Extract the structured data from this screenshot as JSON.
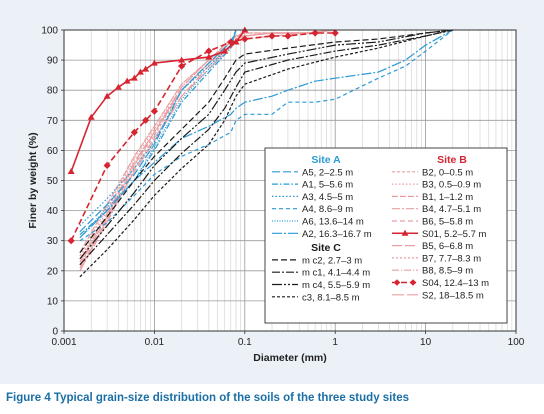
{
  "chart_data": {
    "type": "line",
    "xscale": "log",
    "xlabel": "Diameter (mm)",
    "ylabel": "Finer by weight (%)",
    "xlim": [
      0.001,
      100
    ],
    "ylim": [
      0,
      100
    ],
    "xticks": [
      "0.001",
      "0.01",
      "0.1",
      "1",
      "10",
      "100"
    ],
    "yticks": [
      "0",
      "10",
      "20",
      "30",
      "40",
      "50",
      "60",
      "70",
      "80",
      "90",
      "100"
    ],
    "grid": true,
    "legend_position": "lower-right",
    "groups": [
      "Site A",
      "Site B",
      "Site C"
    ],
    "series": [
      {
        "name": "A5, 2–2.5 m",
        "group": "Site A",
        "color": "#2a9bd6",
        "dash": "8,3",
        "x": [
          0.0015,
          0.003,
          0.006,
          0.01,
          0.02,
          0.04,
          0.07,
          0.08
        ],
        "y": [
          33,
          42,
          52,
          62,
          80,
          89,
          96,
          100
        ]
      },
      {
        "name": "A1, 5–5.6 m",
        "group": "Site A",
        "color": "#2a9bd6",
        "dash": "6,2,1.5,2",
        "x": [
          0.0015,
          0.003,
          0.006,
          0.01,
          0.02,
          0.04,
          0.07,
          0.08
        ],
        "y": [
          32,
          40,
          50,
          60,
          76,
          86,
          94,
          100
        ]
      },
      {
        "name": "A3, 4.5–5 m",
        "group": "Site A",
        "color": "#2a9bd6",
        "dash": "1.5,2",
        "x": [
          0.0015,
          0.003,
          0.006,
          0.01,
          0.02,
          0.04,
          0.07,
          0.08
        ],
        "y": [
          35,
          44,
          54,
          63,
          80,
          88,
          95,
          100
        ]
      },
      {
        "name": "A4, 8.6–9 m",
        "group": "Site A",
        "color": "#2a9bd6",
        "dash": "4,3",
        "x": [
          0.0015,
          0.003,
          0.006,
          0.01,
          0.02,
          0.04,
          0.07,
          0.08,
          0.1,
          0.2,
          0.3,
          0.6,
          1,
          3,
          6,
          10,
          20
        ],
        "y": [
          30,
          36,
          45,
          52,
          58,
          62,
          66,
          70,
          72,
          72,
          76,
          76,
          77,
          84,
          88,
          93,
          100
        ]
      },
      {
        "name": "A6, 13.6–14 m",
        "group": "Site A",
        "color": "#2a9bd6",
        "dash": "1,1.5",
        "x": [
          0.0015,
          0.003,
          0.006,
          0.01,
          0.02,
          0.04,
          0.07,
          0.08
        ],
        "y": [
          31,
          41,
          50,
          61,
          77,
          87,
          95,
          100
        ]
      },
      {
        "name": "A2, 16.3–16.7 m",
        "group": "Site A",
        "color": "#2a9bd6",
        "dash": "10,2,2,2",
        "x": [
          0.0015,
          0.003,
          0.006,
          0.01,
          0.02,
          0.04,
          0.07,
          0.08,
          0.1,
          0.2,
          0.3,
          0.6,
          1,
          3,
          6,
          10,
          20
        ],
        "y": [
          31,
          40,
          50,
          56,
          64,
          68,
          72,
          74,
          76,
          78,
          80,
          83,
          84,
          86,
          90,
          95,
          100
        ]
      },
      {
        "name": "B2, 0–0.5 m",
        "group": "Site B",
        "color": "#e8a0a4",
        "dash": "3,2",
        "x": [
          0.0015,
          0.003,
          0.006,
          0.01,
          0.02,
          0.04,
          0.07,
          0.08,
          0.1,
          0.2,
          0.5,
          1
        ],
        "y": [
          22,
          38,
          55,
          65,
          80,
          89,
          96,
          98,
          98,
          99,
          99,
          100
        ]
      },
      {
        "name": "B3, 0.5–0.9 m",
        "group": "Site B",
        "color": "#e8a0a4",
        "dash": "1.5,2",
        "x": [
          0.0015,
          0.003,
          0.006,
          0.01,
          0.02,
          0.04,
          0.07,
          0.08,
          0.1,
          0.2,
          0.5,
          1
        ],
        "y": [
          24,
          40,
          57,
          67,
          81,
          90,
          96,
          98,
          98,
          99,
          99,
          100
        ]
      },
      {
        "name": "B1, 1–1.2 m",
        "group": "Site B",
        "color": "#e8a0a4",
        "dash": "6,2",
        "x": [
          0.0015,
          0.003,
          0.006,
          0.01,
          0.02,
          0.04,
          0.07,
          0.08,
          0.1,
          0.2,
          0.5,
          1
        ],
        "y": [
          26,
          42,
          58,
          68,
          82,
          90,
          97,
          98,
          99,
          99,
          99,
          100
        ]
      },
      {
        "name": "B4, 4.7–5.1 m",
        "group": "Site B",
        "color": "#e8a0a4",
        "dash": "8,2,2,2",
        "x": [
          0.0015,
          0.003,
          0.006,
          0.01,
          0.02,
          0.04,
          0.07,
          0.08,
          0.1,
          0.2,
          0.5,
          1
        ],
        "y": [
          20,
          36,
          54,
          64,
          78,
          88,
          95,
          97,
          98,
          99,
          99,
          100
        ]
      },
      {
        "name": "B6, 5–5.8 m",
        "group": "Site B",
        "color": "#e8a0a4",
        "dash": "5,3",
        "x": [
          0.0015,
          0.003,
          0.006,
          0.01,
          0.02,
          0.04,
          0.07,
          0.08,
          0.1,
          0.2,
          0.5,
          1
        ],
        "y": [
          21,
          37,
          55,
          66,
          80,
          89,
          95,
          97,
          98,
          99,
          99,
          100
        ]
      },
      {
        "name": "S01, 5.2–5.7 m",
        "group": "Site B",
        "color": "#d62530",
        "dash": "",
        "marker": "triangle",
        "x": [
          0.0012,
          0.002,
          0.003,
          0.004,
          0.005,
          0.006,
          0.007,
          0.008,
          0.01,
          0.02,
          0.04,
          0.06,
          0.08,
          0.1
        ],
        "y": [
          53,
          71,
          78,
          81,
          83,
          84,
          86,
          87,
          89,
          90,
          91,
          93,
          96,
          100
        ]
      },
      {
        "name": "B5, 6–6.8 m",
        "group": "Site B",
        "color": "#e8a0a4",
        "dash": "10,3",
        "x": [
          0.0015,
          0.003,
          0.006,
          0.01,
          0.02,
          0.04,
          0.07,
          0.08,
          0.1,
          0.2,
          0.5,
          1
        ],
        "y": [
          23,
          39,
          56,
          66,
          81,
          90,
          96,
          98,
          98,
          99,
          99,
          100
        ]
      },
      {
        "name": "B7, 7.7–8.3 m",
        "group": "Site B",
        "color": "#e8a0a4",
        "dash": "2,2",
        "x": [
          0.0015,
          0.003,
          0.006,
          0.01,
          0.02,
          0.04,
          0.07,
          0.08,
          0.1,
          0.2,
          0.5,
          1
        ],
        "y": [
          25,
          41,
          58,
          68,
          82,
          90,
          96,
          98,
          99,
          99,
          99,
          100
        ]
      },
      {
        "name": "B8, 8.5–9 m",
        "group": "Site B",
        "color": "#e8a0a4",
        "dash": "7,2,1,2",
        "x": [
          0.0015,
          0.003,
          0.006,
          0.01,
          0.02,
          0.04,
          0.07,
          0.08,
          0.1,
          0.2,
          0.5,
          1
        ],
        "y": [
          22,
          38,
          56,
          66,
          80,
          89,
          95,
          97,
          98,
          99,
          99,
          100
        ]
      },
      {
        "name": "S04, 12.4–13 m",
        "group": "Site B",
        "color": "#d62530",
        "dash": "6,3",
        "marker": "diamond",
        "x": [
          0.0012,
          0.003,
          0.006,
          0.008,
          0.01,
          0.02,
          0.04,
          0.07,
          0.1,
          0.2,
          0.3,
          0.6,
          1
        ],
        "y": [
          30,
          55,
          66,
          70,
          73,
          88,
          93,
          96,
          97,
          98,
          98,
          99,
          99
        ]
      },
      {
        "name": "S2, 18–18.5 m",
        "group": "Site B",
        "color": "#e8a0a4",
        "dash": "12,3",
        "x": [
          0.0015,
          0.003,
          0.006,
          0.01,
          0.02,
          0.04,
          0.07,
          0.08,
          0.1,
          0.2,
          0.5,
          1
        ],
        "y": [
          20,
          37,
          53,
          63,
          78,
          87,
          94,
          96,
          97,
          98,
          99,
          100
        ]
      },
      {
        "name": "m c2, 2.7–3 m",
        "group": "Site C",
        "color": "#1a1a1a",
        "dash": "6,3",
        "x": [
          0.0015,
          0.003,
          0.006,
          0.01,
          0.02,
          0.04,
          0.06,
          0.08,
          0.1,
          0.3,
          1,
          3,
          10,
          20
        ],
        "y": [
          26,
          38,
          50,
          58,
          67,
          76,
          84,
          90,
          92,
          94,
          96,
          97,
          99,
          100
        ]
      },
      {
        "name": "m c1, 4.1–4.4 m",
        "group": "Site C",
        "color": "#1a1a1a",
        "dash": "8,2,2,2",
        "x": [
          0.0015,
          0.003,
          0.006,
          0.01,
          0.02,
          0.04,
          0.06,
          0.08,
          0.1,
          0.3,
          1,
          3,
          10,
          20
        ],
        "y": [
          22,
          32,
          42,
          50,
          59,
          67,
          74,
          81,
          86,
          90,
          93,
          95,
          98,
          100
        ]
      },
      {
        "name": "m c4, 5.5–5.9 m",
        "group": "Site C",
        "color": "#1a1a1a",
        "dash": "10,2,2,2,2,2",
        "x": [
          0.0015,
          0.003,
          0.006,
          0.01,
          0.02,
          0.04,
          0.06,
          0.08,
          0.1,
          0.3,
          1,
          3,
          10,
          20
        ],
        "y": [
          24,
          35,
          46,
          55,
          64,
          72,
          80,
          86,
          89,
          92,
          95,
          96,
          99,
          100
        ]
      },
      {
        "name": "c3, 8.1–8.5 m",
        "group": "Site C",
        "color": "#1a1a1a",
        "dash": "3,2",
        "x": [
          0.0015,
          0.003,
          0.006,
          0.01,
          0.02,
          0.04,
          0.06,
          0.08,
          0.1,
          0.3,
          1,
          3,
          10,
          20
        ],
        "y": [
          18,
          27,
          37,
          45,
          54,
          62,
          70,
          78,
          82,
          87,
          91,
          94,
          98,
          100
        ]
      }
    ]
  },
  "caption": {
    "figure": "Figure 4",
    "text": " Typical grain-size distribution of the soils of the three study sites"
  }
}
